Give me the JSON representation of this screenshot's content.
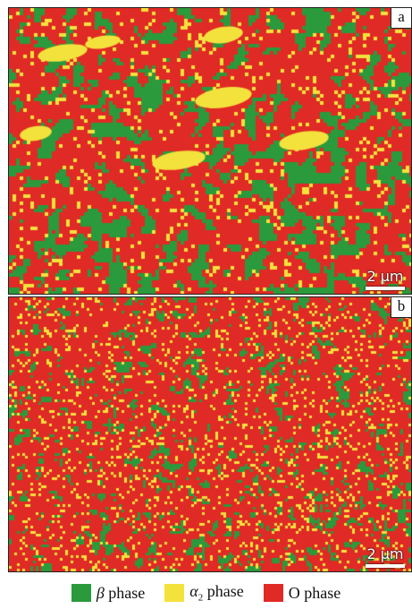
{
  "panels": [
    {
      "label": "a",
      "scale_bar": "2 μm",
      "fractions": {
        "beta": 0.25,
        "alpha2": 0.1,
        "o": 0.65
      }
    },
    {
      "label": "b",
      "scale_bar": "2 μm",
      "fractions": {
        "beta": 0.12,
        "alpha2": 0.12,
        "o": 0.76
      }
    }
  ],
  "legend": {
    "beta": {
      "symbol": "β",
      "text": "phase",
      "color": "#2a9a3c"
    },
    "alpha2": {
      "symbol": "α",
      "subscript": "2",
      "text": "phase",
      "color": "#f4e23c"
    },
    "o": {
      "text": "O phase",
      "color": "#e02a25"
    }
  }
}
